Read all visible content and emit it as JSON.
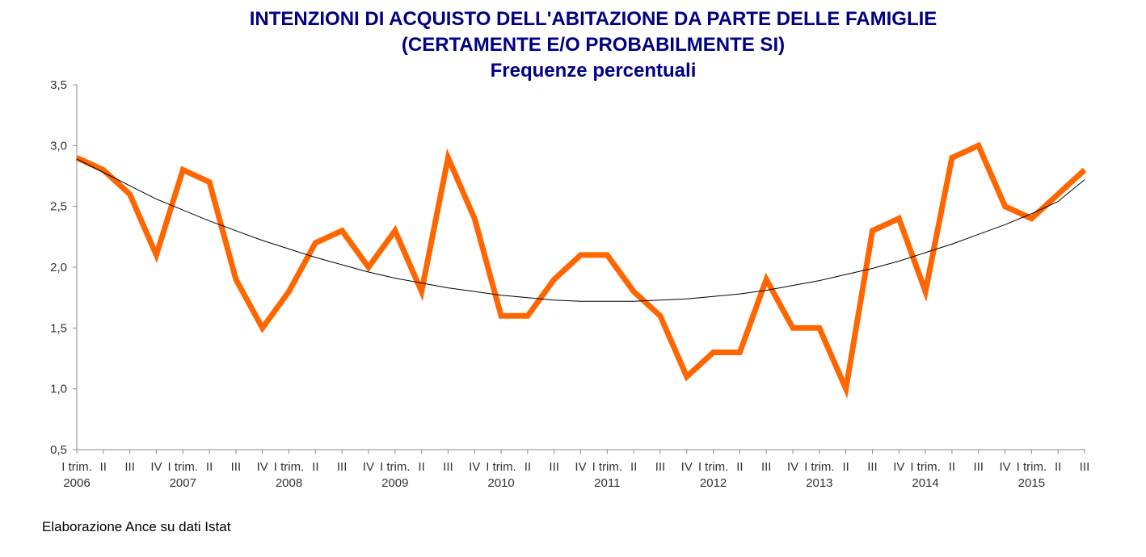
{
  "chart_data": {
    "type": "line",
    "title": "INTENZIONI DI ACQUISTO DELL'ABITAZIONE DA PARTE DELLE FAMIGLIE",
    "subtitle": "(CERTAMENTE E/O PROBABILMENTE SI)",
    "subtitle2": "Frequenze percentuali",
    "ylim": [
      0.5,
      3.5
    ],
    "y_ticks": [
      "0,5",
      "1,0",
      "1,5",
      "2,0",
      "2,5",
      "3,0",
      "3,5"
    ],
    "quarter_labels": [
      "I trim.",
      "II",
      "III",
      "IV",
      "I trim.",
      "II",
      "III",
      "IV",
      "I trim.",
      "II",
      "III",
      "IV",
      "I trim.",
      "II",
      "III",
      "IV",
      "I trim.",
      "II",
      "III",
      "IV",
      "I trim.",
      "II",
      "III",
      "IV",
      "I trim.",
      "II",
      "III",
      "IV",
      "I trim.",
      "II",
      "III",
      "IV",
      "I trim.",
      "II",
      "III",
      "IV",
      "I trim.",
      "II",
      "III"
    ],
    "year_labels": [
      {
        "index": 0,
        "label": "2006"
      },
      {
        "index": 4,
        "label": "2007"
      },
      {
        "index": 8,
        "label": "2008"
      },
      {
        "index": 12,
        "label": "2009"
      },
      {
        "index": 16,
        "label": "2010"
      },
      {
        "index": 20,
        "label": "2011"
      },
      {
        "index": 24,
        "label": "2012"
      },
      {
        "index": 28,
        "label": "2013"
      },
      {
        "index": 32,
        "label": "2014"
      },
      {
        "index": 36,
        "label": "2015"
      }
    ],
    "series": [
      {
        "values": [
          2.9,
          2.8,
          2.6,
          2.1,
          2.8,
          2.7,
          1.9,
          1.5,
          1.8,
          2.2,
          2.3,
          2.0,
          2.3,
          1.8,
          2.9,
          2.4,
          1.6,
          1.6,
          1.9,
          2.1,
          2.1,
          1.8,
          1.6,
          1.1,
          1.3,
          1.3,
          1.9,
          1.5,
          1.5,
          1.0,
          2.3,
          2.4,
          1.8,
          2.9,
          3.0,
          2.5,
          2.4,
          2.6,
          2.8
        ],
        "color": "#FF6600"
      },
      {
        "type": "trendline",
        "values": [
          2.89,
          2.78,
          2.67,
          2.56,
          2.47,
          2.38,
          2.3,
          2.22,
          2.15,
          2.08,
          2.02,
          1.96,
          1.91,
          1.87,
          1.83,
          1.8,
          1.77,
          1.75,
          1.73,
          1.72,
          1.72,
          1.72,
          1.73,
          1.74,
          1.76,
          1.78,
          1.81,
          1.85,
          1.89,
          1.94,
          1.99,
          2.05,
          2.12,
          2.19,
          2.27,
          2.35,
          2.44,
          2.54,
          2.72
        ],
        "color": "#000000"
      }
    ],
    "grid": false,
    "legend": "none"
  },
  "source_note": "Elaborazione Ance su dati Istat"
}
